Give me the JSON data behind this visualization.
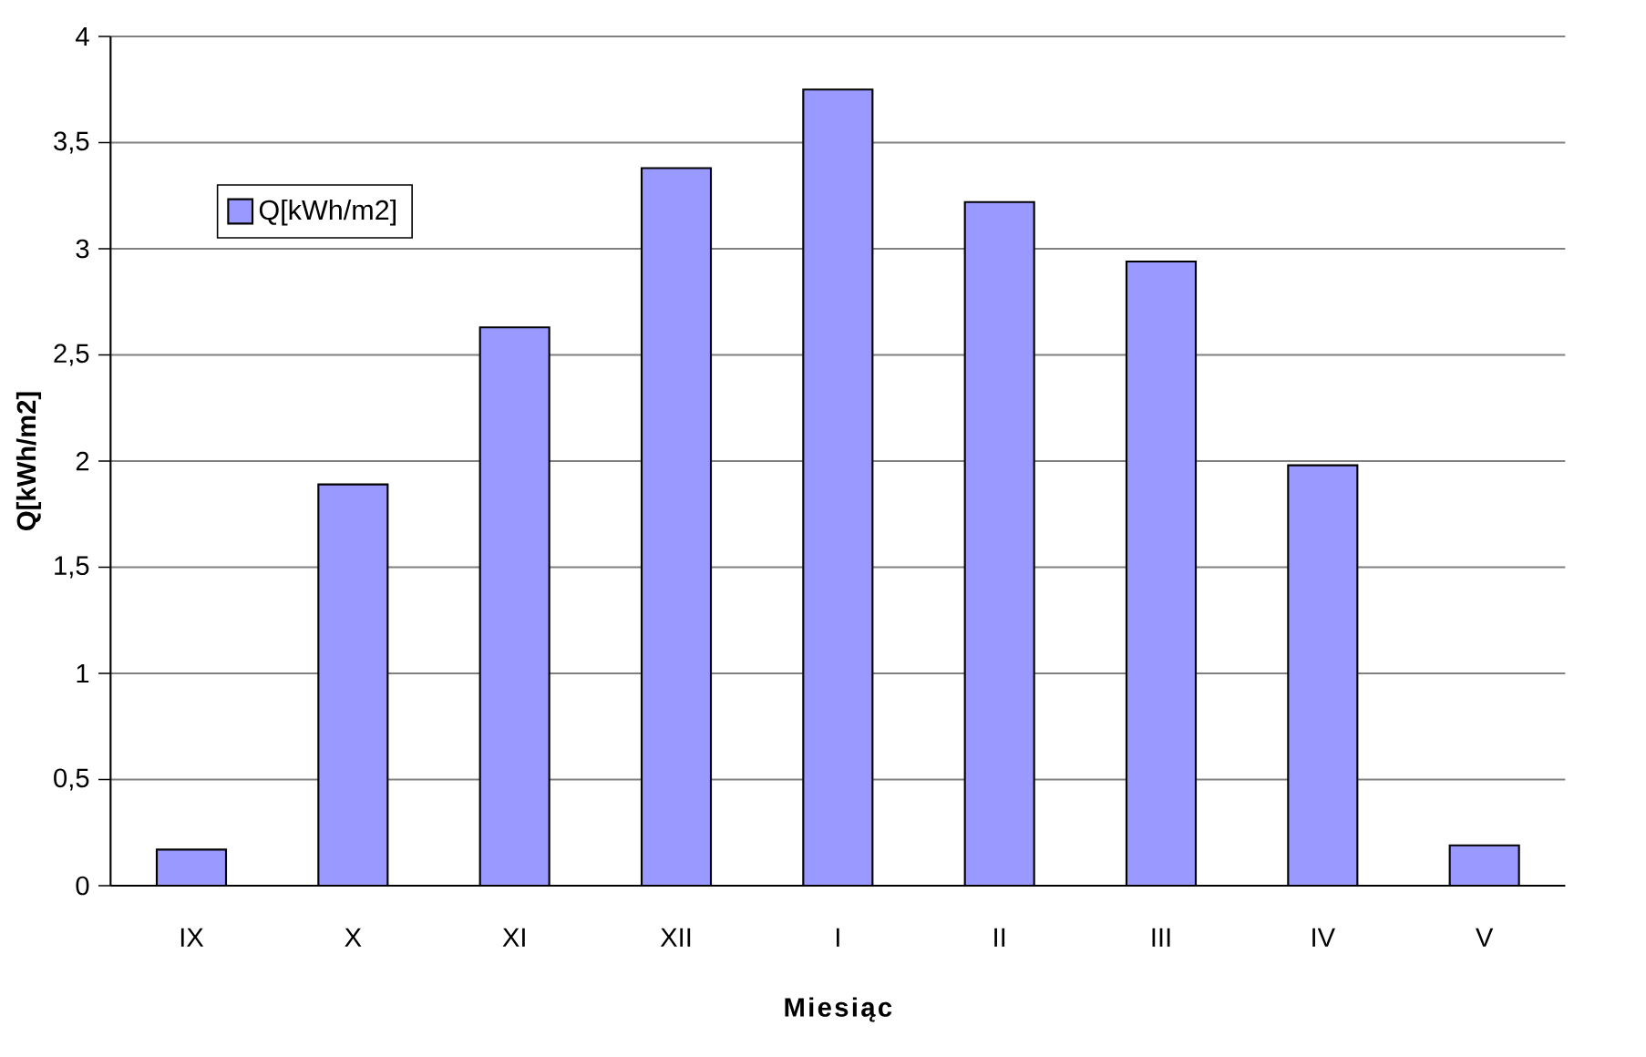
{
  "chart_data": {
    "type": "bar",
    "xlabel": "Miesiąc",
    "ylabel": "Q[kWh/m2]",
    "categories": [
      "IX",
      "X",
      "XI",
      "XII",
      "I",
      "II",
      "III",
      "IV",
      "V"
    ],
    "series": [
      {
        "name": "Q[kWh/m2]",
        "color": "#9999ff",
        "values": [
          0.17,
          1.89,
          2.63,
          3.38,
          3.75,
          3.22,
          2.94,
          1.98,
          0.19
        ]
      }
    ],
    "ylim": [
      0,
      4
    ],
    "yticks": [
      0,
      {
        "value": 0.5,
        "label": "0,5"
      },
      1,
      {
        "value": 1.5,
        "label": "1,5"
      },
      2,
      {
        "value": 2.5,
        "label": "2,5"
      },
      3,
      {
        "value": 3.5,
        "label": "3,5"
      },
      4
    ],
    "grid": "y",
    "legend": "top left"
  }
}
